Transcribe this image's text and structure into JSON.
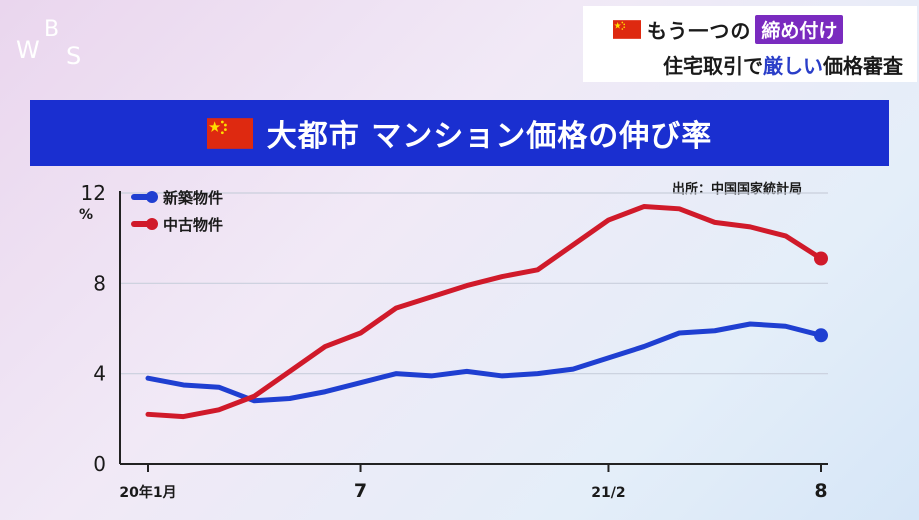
{
  "logo": {
    "text": "WBS"
  },
  "header": {
    "line1_text": "もう一つの",
    "line1_tag": "締め付け",
    "line2_pre": "住宅取引で",
    "line2_highlight": "厳しい",
    "line2_post": "価格審査"
  },
  "banner": {
    "title": "大都市 マンション価格の伸び率"
  },
  "source": "出所：中国国家統計局",
  "colors": {
    "banner_bg": "#1a2fd0",
    "new_homes": "#1f3fd1",
    "used_homes": "#d01a2a",
    "tag_bg": "#7a2bbf"
  },
  "chart_data": {
    "type": "line",
    "unit": "%",
    "ylim": [
      0,
      12
    ],
    "yticks": [
      0,
      4,
      8,
      12
    ],
    "x_count": 20,
    "x_tick_labels": [
      {
        "index": 0,
        "label": "20年1月"
      },
      {
        "index": 6,
        "label": "7"
      },
      {
        "index": 13,
        "label": "21/2"
      },
      {
        "index": 19,
        "label": "8"
      }
    ],
    "legend_position": "top-left",
    "series": [
      {
        "name": "新築物件",
        "color": "#1f3fd1",
        "values": [
          3.8,
          3.5,
          3.4,
          2.8,
          2.9,
          3.2,
          3.6,
          4.0,
          3.9,
          4.1,
          3.9,
          4.0,
          4.2,
          4.7,
          5.2,
          5.8,
          5.9,
          6.2,
          6.1,
          5.7
        ]
      },
      {
        "name": "中古物件",
        "color": "#d01a2a",
        "values": [
          2.2,
          2.1,
          2.4,
          3.0,
          4.1,
          5.2,
          5.8,
          6.9,
          7.4,
          7.9,
          8.3,
          8.6,
          9.7,
          10.8,
          11.4,
          11.3,
          10.7,
          10.5,
          10.1,
          9.1
        ]
      }
    ]
  }
}
